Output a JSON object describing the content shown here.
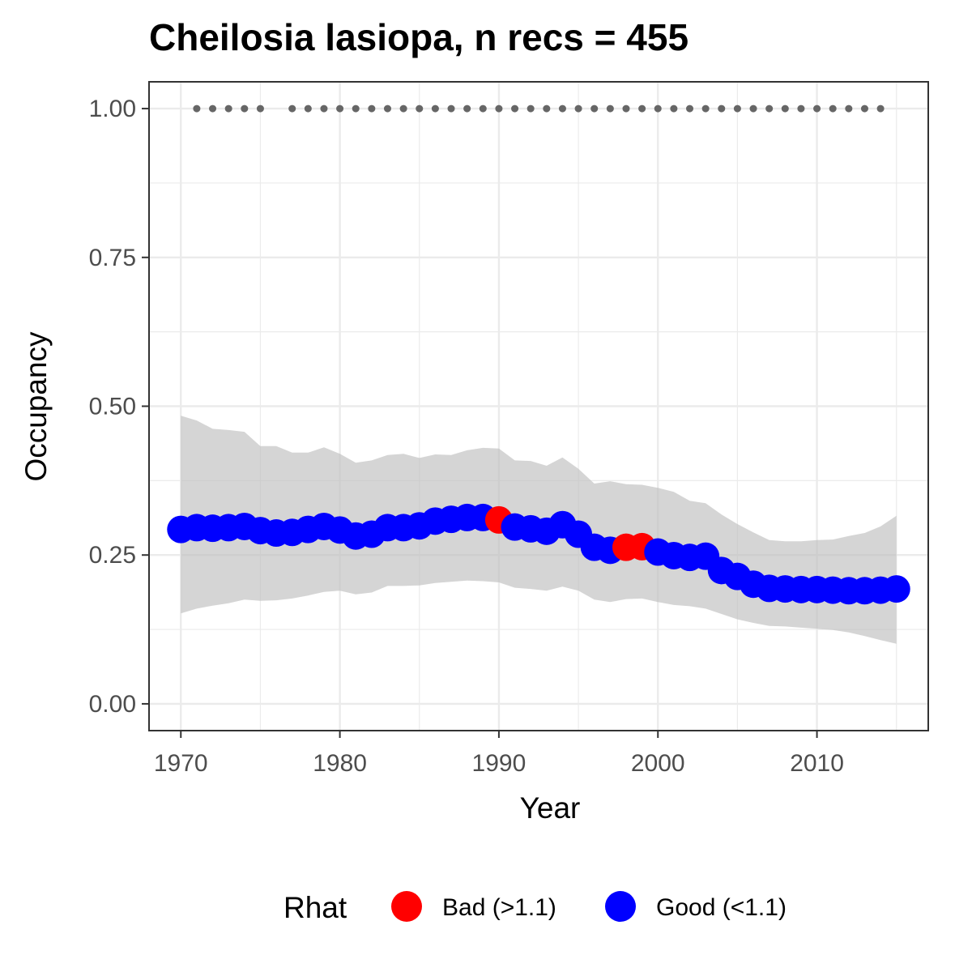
{
  "chart_data": {
    "type": "line",
    "title": "Cheilosia lasiopa, n recs = 455",
    "xlabel": "Year",
    "ylabel": "Occupancy",
    "xlim": [
      1968,
      2017
    ],
    "ylim": [
      -0.045,
      1.045
    ],
    "x_ticks": [
      1970,
      1980,
      1990,
      2000,
      2010
    ],
    "x_tick_labels": [
      "1970",
      "1980",
      "1990",
      "2000",
      "2010"
    ],
    "y_ticks": [
      0,
      0.25,
      0.5,
      0.75,
      1.0
    ],
    "y_tick_labels": [
      "0.00",
      "0.25",
      "0.50",
      "0.75",
      "1.00"
    ],
    "grid": true,
    "legend": {
      "title": "Rhat",
      "position": "bottom",
      "entries": [
        {
          "label": "Bad (>1.1)",
          "color": "#ff0000"
        },
        {
          "label": "Good (<1.1)",
          "color": "#0000ff"
        }
      ]
    },
    "colors": {
      "bad": "#ff0000",
      "good": "#0000ff",
      "ribbon": "#bfbfbf",
      "records": "#666666",
      "panel_border": "#333333",
      "grid": "#ebebeb"
    },
    "series": [
      {
        "name": "Rhat",
        "x": [
          1970,
          1971,
          1972,
          1973,
          1974,
          1975,
          1976,
          1977,
          1978,
          1979,
          1980,
          1981,
          1982,
          1983,
          1984,
          1985,
          1986,
          1987,
          1988,
          1989,
          1990,
          1991,
          1992,
          1993,
          1994,
          1995,
          1996,
          1997,
          1998,
          1999,
          2000,
          2001,
          2002,
          2003,
          2004,
          2005,
          2006,
          2007,
          2008,
          2009,
          2010,
          2011,
          2012,
          2013,
          2014,
          2015
        ],
        "mean": [
          0.293,
          0.296,
          0.295,
          0.296,
          0.298,
          0.291,
          0.287,
          0.288,
          0.293,
          0.298,
          0.292,
          0.282,
          0.285,
          0.296,
          0.296,
          0.299,
          0.307,
          0.31,
          0.313,
          0.313,
          0.309,
          0.297,
          0.294,
          0.29,
          0.301,
          0.285,
          0.263,
          0.258,
          0.263,
          0.264,
          0.255,
          0.249,
          0.246,
          0.248,
          0.224,
          0.214,
          0.201,
          0.194,
          0.193,
          0.192,
          0.192,
          0.191,
          0.19,
          0.19,
          0.191,
          0.193
        ],
        "rhat_status": [
          "good",
          "good",
          "good",
          "good",
          "good",
          "good",
          "good",
          "good",
          "good",
          "good",
          "good",
          "good",
          "good",
          "good",
          "good",
          "good",
          "good",
          "good",
          "good",
          "good",
          "bad",
          "good",
          "good",
          "good",
          "good",
          "good",
          "good",
          "good",
          "bad",
          "bad",
          "good",
          "good",
          "good",
          "good",
          "good",
          "good",
          "good",
          "good",
          "good",
          "good",
          "good",
          "good",
          "good",
          "good",
          "good",
          "good"
        ],
        "upper": [
          0.484,
          0.476,
          0.462,
          0.46,
          0.457,
          0.433,
          0.433,
          0.422,
          0.422,
          0.431,
          0.42,
          0.405,
          0.409,
          0.418,
          0.42,
          0.413,
          0.419,
          0.418,
          0.426,
          0.43,
          0.429,
          0.409,
          0.408,
          0.4,
          0.414,
          0.395,
          0.37,
          0.374,
          0.369,
          0.368,
          0.363,
          0.356,
          0.341,
          0.337,
          0.318,
          0.302,
          0.288,
          0.275,
          0.273,
          0.273,
          0.275,
          0.276,
          0.282,
          0.287,
          0.298,
          0.316
        ],
        "lower": [
          0.152,
          0.16,
          0.165,
          0.169,
          0.175,
          0.173,
          0.174,
          0.177,
          0.182,
          0.188,
          0.19,
          0.184,
          0.187,
          0.198,
          0.198,
          0.199,
          0.203,
          0.205,
          0.207,
          0.206,
          0.204,
          0.195,
          0.193,
          0.19,
          0.197,
          0.19,
          0.175,
          0.171,
          0.176,
          0.177,
          0.171,
          0.166,
          0.164,
          0.16,
          0.151,
          0.142,
          0.136,
          0.131,
          0.13,
          0.128,
          0.126,
          0.124,
          0.12,
          0.114,
          0.107,
          0.101
        ]
      },
      {
        "name": "records",
        "x": [
          1971,
          1972,
          1973,
          1974,
          1975,
          1977,
          1978,
          1979,
          1980,
          1981,
          1982,
          1983,
          1984,
          1985,
          1986,
          1987,
          1988,
          1989,
          1990,
          1991,
          1992,
          1993,
          1994,
          1995,
          1996,
          1997,
          1998,
          1999,
          2000,
          2001,
          2002,
          2003,
          2004,
          2005,
          2006,
          2007,
          2008,
          2009,
          2010,
          2011,
          2012,
          2013,
          2014
        ],
        "values": [
          1,
          1,
          1,
          1,
          1,
          1,
          1,
          1,
          1,
          1,
          1,
          1,
          1,
          1,
          1,
          1,
          1,
          1,
          1,
          1,
          1,
          1,
          1,
          1,
          1,
          1,
          1,
          1,
          1,
          1,
          1,
          1,
          1,
          1,
          1,
          1,
          1,
          1,
          1,
          1,
          1,
          1,
          1
        ]
      }
    ]
  }
}
